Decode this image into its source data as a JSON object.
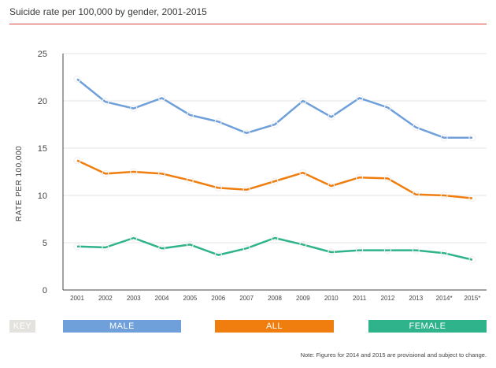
{
  "title": "Suicide rate per 100,000 by gender, 2001-2015",
  "note": "Note: Figures for 2014 and 2015 are provisional and subject to change.",
  "key": {
    "label": "KEY",
    "items": [
      {
        "name": "MALE",
        "color": "#6fa0d9"
      },
      {
        "name": "ALL",
        "color": "#f07e0e"
      },
      {
        "name": "FEMALE",
        "color": "#2fb38a"
      }
    ]
  },
  "chart_data": {
    "type": "line",
    "title": "Suicide rate per 100,000 by gender, 2001-2015",
    "xlabel": "",
    "ylabel": "RATE PER 100,000",
    "ylim": [
      0,
      25
    ],
    "yticks": [
      0,
      5,
      10,
      15,
      20,
      25
    ],
    "grid": true,
    "categories": [
      "2001",
      "2002",
      "2003",
      "2004",
      "2005",
      "2006",
      "2007",
      "2008",
      "2009",
      "2010",
      "2011",
      "2012",
      "2013",
      "2014*",
      "2015*"
    ],
    "series": [
      {
        "name": "MALE",
        "color": "#6fa0d9",
        "values": [
          22.3,
          19.9,
          19.2,
          20.3,
          18.5,
          17.8,
          16.6,
          17.5,
          20.0,
          18.3,
          20.3,
          19.3,
          17.2,
          16.1,
          16.1
        ]
      },
      {
        "name": "ALL",
        "color": "#f07e0e",
        "values": [
          13.7,
          12.3,
          12.5,
          12.3,
          11.6,
          10.8,
          10.6,
          11.5,
          12.4,
          11.0,
          11.9,
          11.8,
          10.1,
          10.0,
          9.7
        ]
      },
      {
        "name": "FEMALE",
        "color": "#2fb38a",
        "values": [
          4.6,
          4.5,
          5.5,
          4.4,
          4.8,
          3.7,
          4.4,
          5.5,
          4.8,
          4.0,
          4.2,
          4.2,
          4.2,
          3.9,
          3.2
        ]
      }
    ]
  }
}
